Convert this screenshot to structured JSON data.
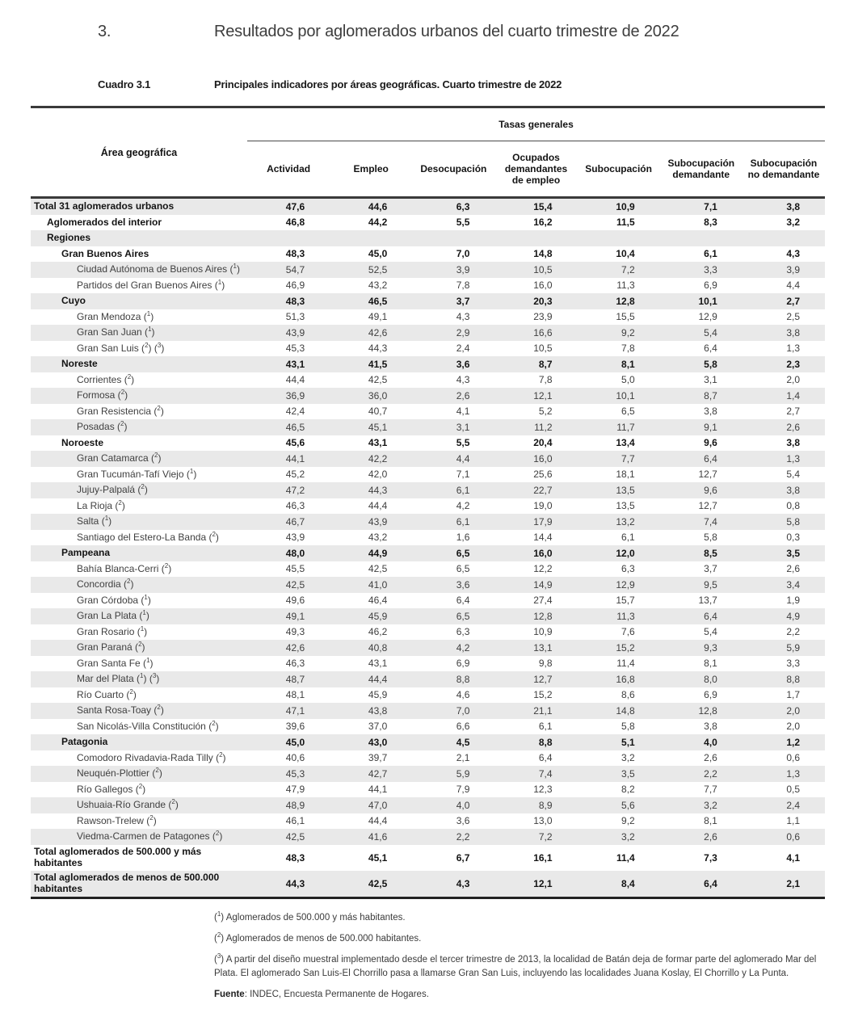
{
  "page": {
    "section_number": "3.",
    "section_title": "Resultados por aglomerados urbanos del cuarto trimestre de 2022",
    "table_label": "Cuadro 3.1",
    "table_caption": "Principales indicadores por áreas geográficas. Cuarto trimestre de 2022"
  },
  "table": {
    "group_header": "Tasas generales",
    "row_header": "Área geográfica",
    "columns": [
      "Actividad",
      "Empleo",
      "Desocupación",
      "Ocupados demandantes de empleo",
      "Subocupación",
      "Subocupación demandante",
      "Subocupación no demandante"
    ],
    "rows": [
      {
        "label": "Total 31 aglomerados urbanos",
        "sups": [],
        "level": 0,
        "bold": true,
        "tall": false,
        "values": [
          "47,6",
          "44,6",
          "6,3",
          "15,4",
          "10,9",
          "7,1",
          "3,8"
        ]
      },
      {
        "label": "Aglomerados del interior",
        "sups": [],
        "level": 1,
        "bold": true,
        "tall": false,
        "values": [
          "46,8",
          "44,2",
          "5,5",
          "16,2",
          "11,5",
          "8,3",
          "3,2"
        ]
      },
      {
        "label": "Regiones",
        "sups": [],
        "level": 1,
        "bold": true,
        "tall": false,
        "values": [
          "",
          "",
          "",
          "",
          "",
          "",
          ""
        ]
      },
      {
        "label": "Gran Buenos Aires",
        "sups": [],
        "level": 2,
        "bold": true,
        "tall": false,
        "values": [
          "48,3",
          "45,0",
          "7,0",
          "14,8",
          "10,4",
          "6,1",
          "4,3"
        ]
      },
      {
        "label": "Ciudad Autónoma de Buenos Aires",
        "sups": [
          "1"
        ],
        "level": 3,
        "bold": false,
        "tall": false,
        "values": [
          "54,7",
          "52,5",
          "3,9",
          "10,5",
          "7,2",
          "3,3",
          "3,9"
        ]
      },
      {
        "label": "Partidos del Gran Buenos Aires",
        "sups": [
          "1"
        ],
        "level": 3,
        "bold": false,
        "tall": false,
        "values": [
          "46,9",
          "43,2",
          "7,8",
          "16,0",
          "11,3",
          "6,9",
          "4,4"
        ]
      },
      {
        "label": "Cuyo",
        "sups": [],
        "level": 2,
        "bold": true,
        "tall": false,
        "values": [
          "48,3",
          "46,5",
          "3,7",
          "20,3",
          "12,8",
          "10,1",
          "2,7"
        ]
      },
      {
        "label": "Gran Mendoza",
        "sups": [
          "1"
        ],
        "level": 3,
        "bold": false,
        "tall": false,
        "values": [
          "51,3",
          "49,1",
          "4,3",
          "23,9",
          "15,5",
          "12,9",
          "2,5"
        ]
      },
      {
        "label": "Gran San Juan",
        "sups": [
          "1"
        ],
        "level": 3,
        "bold": false,
        "tall": false,
        "values": [
          "43,9",
          "42,6",
          "2,9",
          "16,6",
          "9,2",
          "5,4",
          "3,8"
        ]
      },
      {
        "label": "Gran San Luis",
        "sups": [
          "2",
          "3"
        ],
        "level": 3,
        "bold": false,
        "tall": false,
        "values": [
          "45,3",
          "44,3",
          "2,4",
          "10,5",
          "7,8",
          "6,4",
          "1,3"
        ]
      },
      {
        "label": "Noreste",
        "sups": [],
        "level": 2,
        "bold": true,
        "tall": false,
        "values": [
          "43,1",
          "41,5",
          "3,6",
          "8,7",
          "8,1",
          "5,8",
          "2,3"
        ]
      },
      {
        "label": "Corrientes",
        "sups": [
          "2"
        ],
        "level": 3,
        "bold": false,
        "tall": false,
        "values": [
          "44,4",
          "42,5",
          "4,3",
          "7,8",
          "5,0",
          "3,1",
          "2,0"
        ]
      },
      {
        "label": "Formosa",
        "sups": [
          "2"
        ],
        "level": 3,
        "bold": false,
        "tall": false,
        "values": [
          "36,9",
          "36,0",
          "2,6",
          "12,1",
          "10,1",
          "8,7",
          "1,4"
        ]
      },
      {
        "label": "Gran Resistencia",
        "sups": [
          "2"
        ],
        "level": 3,
        "bold": false,
        "tall": false,
        "values": [
          "42,4",
          "40,7",
          "4,1",
          "5,2",
          "6,5",
          "3,8",
          "2,7"
        ]
      },
      {
        "label": "Posadas",
        "sups": [
          "2"
        ],
        "level": 3,
        "bold": false,
        "tall": false,
        "values": [
          "46,5",
          "45,1",
          "3,1",
          "11,2",
          "11,7",
          "9,1",
          "2,6"
        ]
      },
      {
        "label": "Noroeste",
        "sups": [],
        "level": 2,
        "bold": true,
        "tall": false,
        "values": [
          "45,6",
          "43,1",
          "5,5",
          "20,4",
          "13,4",
          "9,6",
          "3,8"
        ]
      },
      {
        "label": "Gran Catamarca",
        "sups": [
          "2"
        ],
        "level": 3,
        "bold": false,
        "tall": false,
        "values": [
          "44,1",
          "42,2",
          "4,4",
          "16,0",
          "7,7",
          "6,4",
          "1,3"
        ]
      },
      {
        "label": "Gran Tucumán-Tafí Viejo",
        "sups": [
          "1"
        ],
        "level": 3,
        "bold": false,
        "tall": false,
        "values": [
          "45,2",
          "42,0",
          "7,1",
          "25,6",
          "18,1",
          "12,7",
          "5,4"
        ]
      },
      {
        "label": "Jujuy-Palpalá",
        "sups": [
          "2"
        ],
        "level": 3,
        "bold": false,
        "tall": false,
        "values": [
          "47,2",
          "44,3",
          "6,1",
          "22,7",
          "13,5",
          "9,6",
          "3,8"
        ]
      },
      {
        "label": "La Rioja",
        "sups": [
          "2"
        ],
        "level": 3,
        "bold": false,
        "tall": false,
        "values": [
          "46,3",
          "44,4",
          "4,2",
          "19,0",
          "13,5",
          "12,7",
          "0,8"
        ]
      },
      {
        "label": "Salta",
        "sups": [
          "1"
        ],
        "level": 3,
        "bold": false,
        "tall": false,
        "values": [
          "46,7",
          "43,9",
          "6,1",
          "17,9",
          "13,2",
          "7,4",
          "5,8"
        ]
      },
      {
        "label": "Santiago del Estero-La Banda",
        "sups": [
          "2"
        ],
        "level": 3,
        "bold": false,
        "tall": false,
        "values": [
          "43,9",
          "43,2",
          "1,6",
          "14,4",
          "6,1",
          "5,8",
          "0,3"
        ]
      },
      {
        "label": "Pampeana",
        "sups": [],
        "level": 2,
        "bold": true,
        "tall": false,
        "values": [
          "48,0",
          "44,9",
          "6,5",
          "16,0",
          "12,0",
          "8,5",
          "3,5"
        ]
      },
      {
        "label": "Bahía Blanca-Cerri",
        "sups": [
          "2"
        ],
        "level": 3,
        "bold": false,
        "tall": false,
        "values": [
          "45,5",
          "42,5",
          "6,5",
          "12,2",
          "6,3",
          "3,7",
          "2,6"
        ]
      },
      {
        "label": "Concordia",
        "sups": [
          "2"
        ],
        "level": 3,
        "bold": false,
        "tall": false,
        "values": [
          "42,5",
          "41,0",
          "3,6",
          "14,9",
          "12,9",
          "9,5",
          "3,4"
        ]
      },
      {
        "label": "Gran Córdoba",
        "sups": [
          "1"
        ],
        "level": 3,
        "bold": false,
        "tall": false,
        "values": [
          "49,6",
          "46,4",
          "6,4",
          "27,4",
          "15,7",
          "13,7",
          "1,9"
        ]
      },
      {
        "label": "Gran La Plata",
        "sups": [
          "1"
        ],
        "level": 3,
        "bold": false,
        "tall": false,
        "values": [
          "49,1",
          "45,9",
          "6,5",
          "12,8",
          "11,3",
          "6,4",
          "4,9"
        ]
      },
      {
        "label": "Gran Rosario",
        "sups": [
          "1"
        ],
        "level": 3,
        "bold": false,
        "tall": false,
        "values": [
          "49,3",
          "46,2",
          "6,3",
          "10,9",
          "7,6",
          "5,4",
          "2,2"
        ]
      },
      {
        "label": "Gran Paraná",
        "sups": [
          "2"
        ],
        "level": 3,
        "bold": false,
        "tall": false,
        "values": [
          "42,6",
          "40,8",
          "4,2",
          "13,1",
          "15,2",
          "9,3",
          "5,9"
        ]
      },
      {
        "label": "Gran Santa Fe",
        "sups": [
          "1"
        ],
        "level": 3,
        "bold": false,
        "tall": false,
        "values": [
          "46,3",
          "43,1",
          "6,9",
          "9,8",
          "11,4",
          "8,1",
          "3,3"
        ]
      },
      {
        "label": "Mar del Plata",
        "sups": [
          "1",
          "3"
        ],
        "level": 3,
        "bold": false,
        "tall": false,
        "values": [
          "48,7",
          "44,4",
          "8,8",
          "12,7",
          "16,8",
          "8,0",
          "8,8"
        ]
      },
      {
        "label": "Río Cuarto",
        "sups": [
          "2"
        ],
        "level": 3,
        "bold": false,
        "tall": false,
        "values": [
          "48,1",
          "45,9",
          "4,6",
          "15,2",
          "8,6",
          "6,9",
          "1,7"
        ]
      },
      {
        "label": "Santa Rosa-Toay",
        "sups": [
          "2"
        ],
        "level": 3,
        "bold": false,
        "tall": false,
        "values": [
          "47,1",
          "43,8",
          "7,0",
          "21,1",
          "14,8",
          "12,8",
          "2,0"
        ]
      },
      {
        "label": "San Nicolás-Villa Constitución",
        "sups": [
          "2"
        ],
        "level": 3,
        "bold": false,
        "tall": false,
        "values": [
          "39,6",
          "37,0",
          "6,6",
          "6,1",
          "5,8",
          "3,8",
          "2,0"
        ]
      },
      {
        "label": "Patagonia",
        "sups": [],
        "level": 2,
        "bold": true,
        "tall": false,
        "values": [
          "45,0",
          "43,0",
          "4,5",
          "8,8",
          "5,1",
          "4,0",
          "1,2"
        ]
      },
      {
        "label": "Comodoro Rivadavia-Rada Tilly",
        "sups": [
          "2"
        ],
        "level": 3,
        "bold": false,
        "tall": false,
        "values": [
          "40,6",
          "39,7",
          "2,1",
          "6,4",
          "3,2",
          "2,6",
          "0,6"
        ]
      },
      {
        "label": "Neuquén-Plottier",
        "sups": [
          "2"
        ],
        "level": 3,
        "bold": false,
        "tall": false,
        "values": [
          "45,3",
          "42,7",
          "5,9",
          "7,4",
          "3,5",
          "2,2",
          "1,3"
        ]
      },
      {
        "label": "Río Gallegos",
        "sups": [
          "2"
        ],
        "level": 3,
        "bold": false,
        "tall": false,
        "values": [
          "47,9",
          "44,1",
          "7,9",
          "12,3",
          "8,2",
          "7,7",
          "0,5"
        ]
      },
      {
        "label": "Ushuaia-Río Grande",
        "sups": [
          "2"
        ],
        "level": 3,
        "bold": false,
        "tall": false,
        "values": [
          "48,9",
          "47,0",
          "4,0",
          "8,9",
          "5,6",
          "3,2",
          "2,4"
        ]
      },
      {
        "label": "Rawson-Trelew",
        "sups": [
          "2"
        ],
        "level": 3,
        "bold": false,
        "tall": false,
        "values": [
          "46,1",
          "44,4",
          "3,6",
          "13,0",
          "9,2",
          "8,1",
          "1,1"
        ]
      },
      {
        "label": "Viedma-Carmen de Patagones",
        "sups": [
          "2"
        ],
        "level": 3,
        "bold": false,
        "tall": false,
        "values": [
          "42,5",
          "41,6",
          "2,2",
          "7,2",
          "3,2",
          "2,6",
          "0,6"
        ]
      },
      {
        "label": "Total aglomerados de 500.000 y más habitantes",
        "sups": [],
        "level": 0,
        "bold": true,
        "tall": true,
        "values": [
          "48,3",
          "45,1",
          "6,7",
          "16,1",
          "11,4",
          "7,3",
          "4,1"
        ]
      },
      {
        "label": "Total aglomerados de menos de 500.000 habitantes",
        "sups": [],
        "level": 0,
        "bold": true,
        "tall": true,
        "values": [
          "44,3",
          "42,5",
          "4,3",
          "12,1",
          "8,4",
          "6,4",
          "2,1"
        ]
      }
    ]
  },
  "footnotes": [
    {
      "sup": "1",
      "text": "Aglomerados de 500.000 y más habitantes."
    },
    {
      "sup": "2",
      "text": "Aglomerados de menos de 500.000 habitantes."
    },
    {
      "sup": "3",
      "text": "A partir del diseño muestral implementado desde el tercer trimestre de 2013, la localidad de Batán deja de formar parte del aglomerado Mar del Plata. El aglomerado San Luis-El Chorrillo pasa a llamarse Gran San Luis, incluyendo las localidades Juana Koslay, El Chorrillo y La Punta."
    }
  ],
  "source": {
    "label": "Fuente",
    "text": ": INDEC, Encuesta Permanente de Hogares."
  },
  "colors": {
    "stripe": "#e9e9e9",
    "rule_dark": "#3a3a3a",
    "text": "#3f3f3f",
    "text_bold": "#141414",
    "title": "#3d3d3d"
  }
}
